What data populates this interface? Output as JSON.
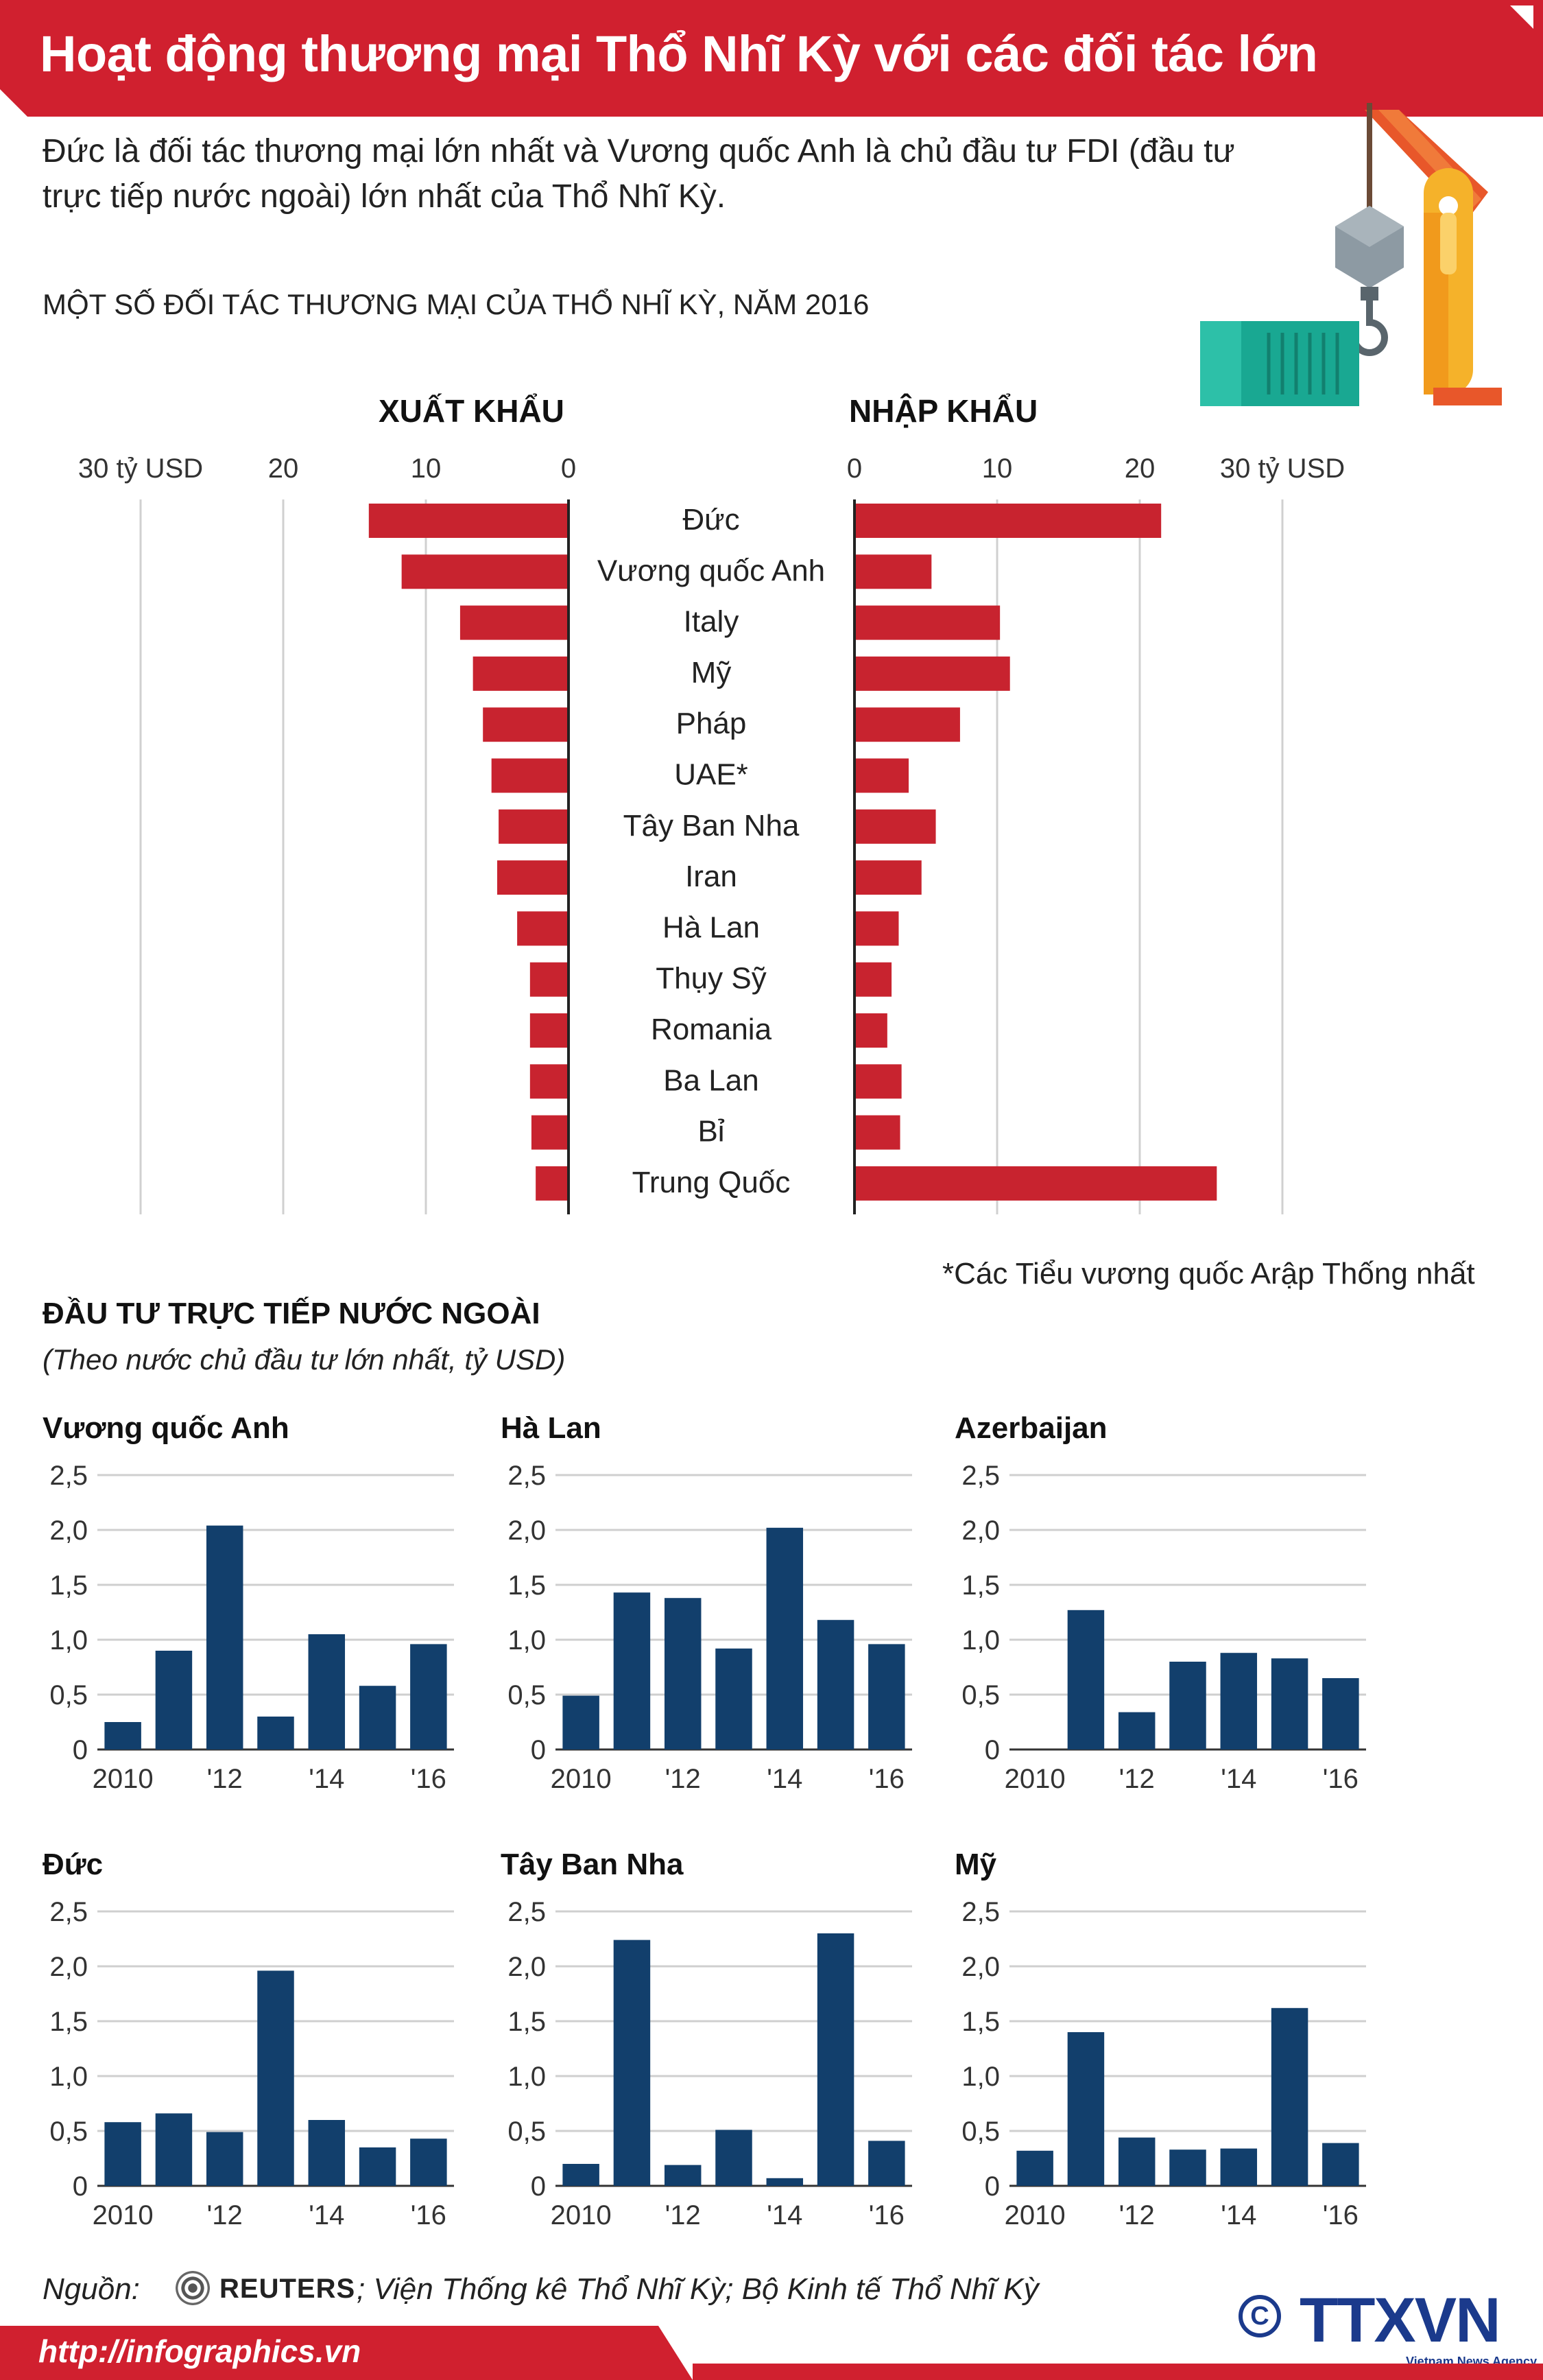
{
  "header": {
    "title": "Hoạt động thương mại Thổ Nhĩ Kỳ với các đối tác lớn",
    "lead": "Đức là đối tác thương mại lớn nhất và Vương quốc Anh là chủ đầu tư FDI (đầu tư trực tiếp nước ngoài) lớn nhất của Thổ Nhĩ Kỳ."
  },
  "trade": {
    "subtitle": "MỘT SỐ ĐỐI TÁC THƯƠNG MẠI CỦA THỔ NHĨ KỲ, NĂM 2016",
    "export_label": "XUẤT KHẨU",
    "import_label": "NHẬP KHẨU",
    "footnote": "*Các Tiểu vương quốc Arập Thống nhất"
  },
  "fdi": {
    "title": "ĐẦU TƯ TRỰC TIẾP NƯỚC NGOÀI",
    "subtitle": "(Theo nước chủ đầu tư lớn nhất, tỷ USD)"
  },
  "footer": {
    "source_label": "Nguồn:",
    "reuters": "REUTERS",
    "source_rest": "; Viện Thống kê Thổ Nhĩ Kỳ; Bộ Kinh tế Thổ Nhĩ Kỳ",
    "url": "http://infographics.vn",
    "agency": "TTXVN",
    "agency_sub": "Vietnam News Agency",
    "copyright": "C"
  },
  "colors": {
    "red": "#d0202f",
    "bar_red": "#c8232f",
    "navy": "#123f6c"
  },
  "chart_data": [
    {
      "type": "bar",
      "title": "XUẤT KHẨU",
      "orientation": "horizontal-left",
      "categories": [
        "Đức",
        "Vương quốc Anh",
        "Italy",
        "Mỹ",
        "Pháp",
        "UAE*",
        "Tây Ban Nha",
        "Iran",
        "Hà Lan",
        "Thụy Sỹ",
        "Romania",
        "Ba Lan",
        "Bỉ",
        "Trung Quốc"
      ],
      "values": [
        14.0,
        11.7,
        7.6,
        6.7,
        6.0,
        5.4,
        4.9,
        5.0,
        3.6,
        2.7,
        2.7,
        2.7,
        2.6,
        2.3
      ],
      "xlim": [
        0,
        30
      ],
      "ticks": [
        {
          "value": 30,
          "label": "30 tỷ USD"
        },
        {
          "value": 20,
          "label": "20"
        },
        {
          "value": 10,
          "label": "10"
        },
        {
          "value": 0,
          "label": "0"
        }
      ]
    },
    {
      "type": "bar",
      "title": "NHẬP KHẨU",
      "orientation": "horizontal-right",
      "categories": [
        "Đức",
        "Vương quốc Anh",
        "Italy",
        "Mỹ",
        "Pháp",
        "UAE*",
        "Tây Ban Nha",
        "Iran",
        "Hà Lan",
        "Thụy Sỹ",
        "Romania",
        "Ba Lan",
        "Bỉ",
        "Trung Quốc"
      ],
      "values": [
        21.5,
        5.4,
        10.2,
        10.9,
        7.4,
        3.8,
        5.7,
        4.7,
        3.1,
        2.6,
        2.3,
        3.3,
        3.2,
        25.4
      ],
      "xlim": [
        0,
        30
      ],
      "ticks": [
        {
          "value": 0,
          "label": "0"
        },
        {
          "value": 10,
          "label": "10"
        },
        {
          "value": 20,
          "label": "20"
        },
        {
          "value": 30,
          "label": "30 tỷ USD"
        }
      ]
    },
    {
      "type": "bar",
      "title": "Vương quốc Anh",
      "x": [
        2010,
        2011,
        2012,
        2013,
        2014,
        2015,
        2016
      ],
      "values": [
        0.25,
        0.9,
        2.04,
        0.3,
        1.05,
        0.58,
        0.96
      ],
      "ylim": [
        0,
        2.5
      ],
      "yticks": [
        "0",
        "0,5",
        "1,0",
        "1,5",
        "2,0",
        "2,5"
      ],
      "xticks": [
        "2010",
        "'12",
        "'14",
        "'16"
      ]
    },
    {
      "type": "bar",
      "title": "Hà Lan",
      "x": [
        2010,
        2011,
        2012,
        2013,
        2014,
        2015,
        2016
      ],
      "values": [
        0.49,
        1.43,
        1.38,
        0.92,
        2.02,
        1.18,
        0.96
      ],
      "ylim": [
        0,
        2.5
      ],
      "yticks": [
        "0",
        "0,5",
        "1,0",
        "1,5",
        "2,0",
        "2,5"
      ],
      "xticks": [
        "2010",
        "'12",
        "'14",
        "'16"
      ]
    },
    {
      "type": "bar",
      "title": "Azerbaijan",
      "x": [
        2010,
        2011,
        2012,
        2013,
        2014,
        2015,
        2016
      ],
      "values": [
        0.0,
        1.27,
        0.34,
        0.8,
        0.88,
        0.83,
        0.65
      ],
      "ylim": [
        0,
        2.5
      ],
      "yticks": [
        "0",
        "0,5",
        "1,0",
        "1,5",
        "2,0",
        "2,5"
      ],
      "xticks": [
        "2010",
        "'12",
        "'14",
        "'16"
      ]
    },
    {
      "type": "bar",
      "title": "Đức",
      "x": [
        2010,
        2011,
        2012,
        2013,
        2014,
        2015,
        2016
      ],
      "values": [
        0.58,
        0.66,
        0.49,
        1.96,
        0.6,
        0.35,
        0.43
      ],
      "ylim": [
        0,
        2.5
      ],
      "yticks": [
        "0",
        "0,5",
        "1,0",
        "1,5",
        "2,0",
        "2,5"
      ],
      "xticks": [
        "2010",
        "'12",
        "'14",
        "'16"
      ]
    },
    {
      "type": "bar",
      "title": "Tây Ban Nha",
      "x": [
        2010,
        2011,
        2012,
        2013,
        2014,
        2015,
        2016
      ],
      "values": [
        0.2,
        2.24,
        0.19,
        0.51,
        0.07,
        2.3,
        0.41
      ],
      "ylim": [
        0,
        2.5
      ],
      "yticks": [
        "0",
        "0,5",
        "1,0",
        "1,5",
        "2,0",
        "2,5"
      ],
      "xticks": [
        "2010",
        "'12",
        "'14",
        "'16"
      ]
    },
    {
      "type": "bar",
      "title": "Mỹ",
      "x": [
        2010,
        2011,
        2012,
        2013,
        2014,
        2015,
        2016
      ],
      "values": [
        0.32,
        1.4,
        0.44,
        0.33,
        0.34,
        1.62,
        0.39
      ],
      "ylim": [
        0,
        2.5
      ],
      "yticks": [
        "0",
        "0,5",
        "1,0",
        "1,5",
        "2,0",
        "2,5"
      ],
      "xticks": [
        "2010",
        "'12",
        "'14",
        "'16"
      ]
    }
  ]
}
